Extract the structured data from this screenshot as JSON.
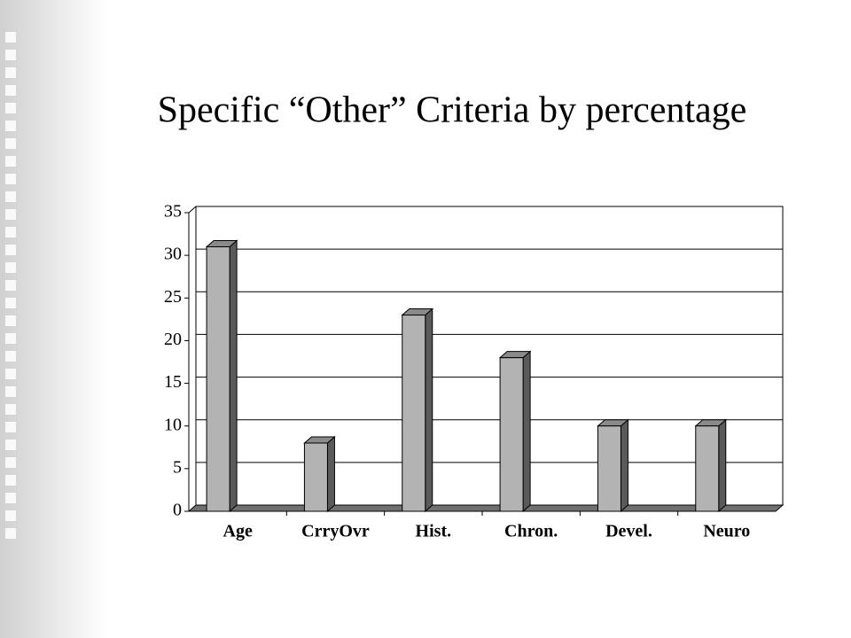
{
  "chart_data": {
    "type": "bar",
    "title": "Specific “Other” Criteria by percentage",
    "categories": [
      "Age",
      "CrryOvr",
      "Hist.",
      "Chron.",
      "Devel.",
      "Neuro"
    ],
    "values": [
      31,
      8,
      23,
      18,
      10,
      10
    ],
    "color": "#b3b3b3",
    "ylim": [
      0,
      35
    ],
    "yticks": [
      0,
      5,
      10,
      15,
      20,
      25,
      30,
      35
    ],
    "grid": true
  }
}
